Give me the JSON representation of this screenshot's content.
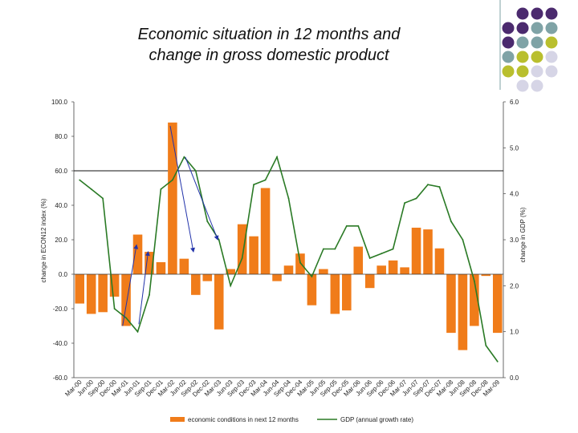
{
  "title_line1": "Economic situation in 12 months and",
  "title_line2": "change in gross domestic product",
  "decor_colors": [
    "#4b2a6e",
    "#7fa3a6",
    "#b9bf2e",
    "#d6d5e6"
  ],
  "chart_data": {
    "type": "bar+line",
    "xlabel": "",
    "ylabel_left": "change in ECON12 index (%)",
    "ylabel_right": "change in GDP (%)",
    "ylim_left": [
      -60,
      100
    ],
    "ylim_right": [
      0,
      6
    ],
    "yticks_left": [
      "100.0",
      "80.0",
      "60.0",
      "40.0",
      "20.0",
      "0.0",
      "-20.0",
      "-40.0",
      "-60.0"
    ],
    "yticks_right": [
      "6.0",
      "5.0",
      "4.0",
      "3.0",
      "2.0",
      "1.0",
      "0.0"
    ],
    "reference_line_left": 60,
    "categories": [
      "Mar-00",
      "Jun-00",
      "Sep-00",
      "Dec-00",
      "Mar-01",
      "Jun-01",
      "Sep-01",
      "Dec-01",
      "Mar-02",
      "Jun-02",
      "Sep-02",
      "Dec-02",
      "Mar-03",
      "Jun-03",
      "Sep-03",
      "Dec-03",
      "Mar-04",
      "Jun-04",
      "Sep-04",
      "Dec-04",
      "Mar-05",
      "Jun-05",
      "Sep-05",
      "Dec-05",
      "Mar-06",
      "Jun-06",
      "Sep-06",
      "Dec-06",
      "Mar-07",
      "Jun-07",
      "Sep-07",
      "Dec-07",
      "Mar-08",
      "Jun-08",
      "Sep-08",
      "Dec-08",
      "Mar-09"
    ],
    "series": [
      {
        "name": "economic conditions in next 12 months",
        "type": "bar",
        "axis": "left",
        "color": "#f07c1a",
        "values": [
          -17,
          -23,
          -22,
          -13,
          -30,
          23,
          13,
          7,
          88,
          9,
          -12,
          -4,
          -32,
          3,
          29,
          22,
          50,
          -4,
          5,
          12,
          -18,
          3,
          -23,
          -21,
          16,
          -8,
          5,
          8,
          4,
          27,
          26,
          15,
          -34,
          -44,
          -30,
          -1,
          -34
        ]
      },
      {
        "name": "GDP (annual growth rate)",
        "type": "line",
        "axis": "right",
        "color": "#2a7a25",
        "values": [
          4.3,
          4.1,
          3.9,
          1.5,
          1.3,
          1.0,
          1.8,
          4.1,
          4.3,
          4.8,
          4.5,
          3.4,
          3.0,
          2.0,
          2.6,
          4.2,
          4.3,
          4.8,
          3.9,
          2.5,
          2.2,
          2.8,
          2.8,
          3.3,
          3.3,
          2.6,
          2.7,
          2.8,
          3.8,
          3.9,
          4.2,
          4.15,
          3.4,
          3.0,
          2.1,
          0.7,
          0.35
        ]
      }
    ],
    "legend_position": "bottom",
    "grid": false
  }
}
